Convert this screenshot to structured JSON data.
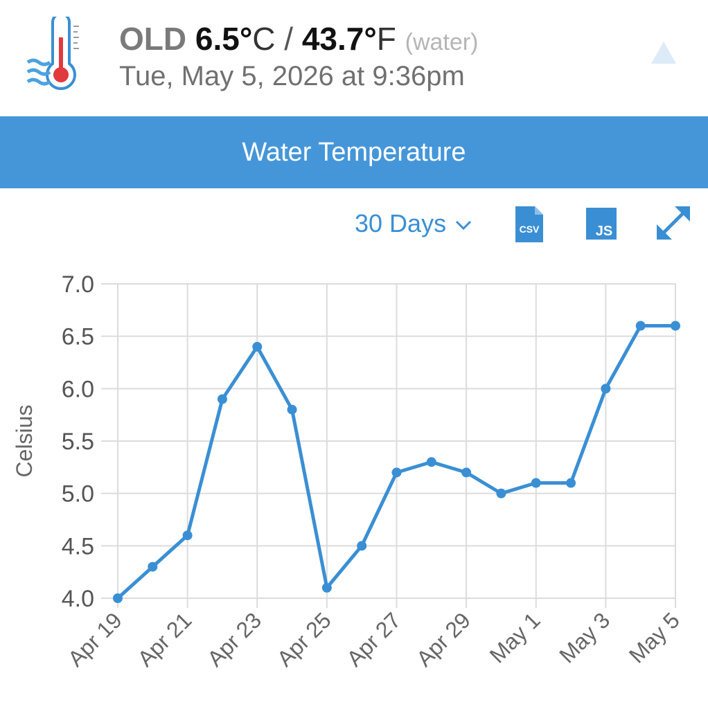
{
  "header": {
    "status": "OLD",
    "celsius_value": "6.5°",
    "celsius_unit": "C",
    "separator": "/",
    "fahrenheit_value": "43.7°",
    "fahrenheit_unit": "F",
    "measure_kind": "(water)",
    "timestamp": "Tue, May 5, 2026 at 9:36pm"
  },
  "banner": {
    "title": "Water Temperature"
  },
  "toolbar": {
    "range_label": "30 Days",
    "csv_label": "CSV",
    "js_label": "JS"
  },
  "colors": {
    "accent": "#4596d9",
    "line": "#3a8fd4",
    "thermometer_bulb": "#e0393e"
  },
  "chart_data": {
    "type": "line",
    "title": "",
    "xlabel": "",
    "ylabel": "Celsius",
    "x": [
      "Apr 19",
      "Apr 20",
      "Apr 21",
      "Apr 22",
      "Apr 23",
      "Apr 24",
      "Apr 25",
      "Apr 26",
      "Apr 27",
      "Apr 28",
      "Apr 29",
      "Apr 30",
      "May 1",
      "May 2",
      "May 3",
      "May 4",
      "May 5"
    ],
    "x_tick_labels": [
      "Apr 19",
      "Apr 21",
      "Apr 23",
      "Apr 25",
      "Apr 27",
      "Apr 29",
      "May 1",
      "May 3",
      "May 5"
    ],
    "series": [
      {
        "values": [
          4.0,
          4.3,
          4.6,
          5.9,
          6.4,
          5.8,
          4.1,
          4.5,
          5.2,
          5.3,
          5.2,
          5.0,
          5.1,
          5.1,
          6.0,
          6.6,
          6.6
        ]
      }
    ],
    "ylim": [
      4.0,
      7.0
    ],
    "y_ticks": [
      "4.0",
      "4.5",
      "5.0",
      "5.5",
      "6.0",
      "6.5",
      "7.0"
    ],
    "grid": true,
    "legend": "none"
  }
}
